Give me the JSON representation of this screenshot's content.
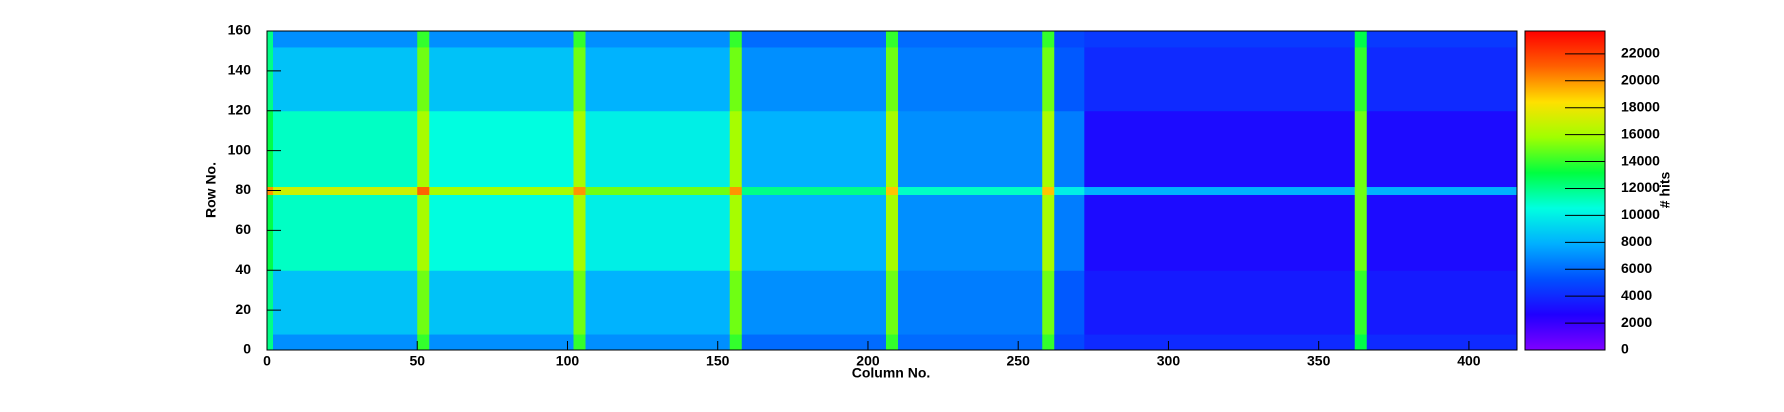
{
  "chart_data": {
    "type": "heatmap",
    "x_label": "Column No.",
    "y_label": "Row No.",
    "z_label": "# hits",
    "x_edges": [
      0,
      2,
      50,
      54,
      102,
      106,
      154,
      158,
      206,
      210,
      258,
      262,
      272,
      362,
      366,
      416
    ],
    "y_edges": [
      0,
      8,
      40,
      78,
      82,
      120,
      152,
      160
    ],
    "z": [
      [
        12000,
        7000,
        14000,
        7000,
        14000,
        7000,
        14000,
        6000,
        14000,
        6000,
        14000,
        5000,
        4000,
        13000,
        4000
      ],
      [
        12000,
        8500,
        15000,
        8500,
        15000,
        8000,
        15000,
        7000,
        15000,
        6500,
        15000,
        5500,
        3500,
        14000,
        3500
      ],
      [
        13000,
        11000,
        16000,
        10500,
        16000,
        10000,
        16000,
        8000,
        16000,
        7000,
        16000,
        6500,
        3000,
        15000,
        3000
      ],
      [
        20000,
        17000,
        21000,
        16000,
        20000,
        15000,
        20000,
        12000,
        19000,
        11000,
        19000,
        10000,
        8000,
        15000,
        8000
      ],
      [
        13000,
        11000,
        16000,
        10500,
        16000,
        10000,
        16000,
        8000,
        16000,
        7000,
        16000,
        6500,
        3000,
        15000,
        3000
      ],
      [
        12000,
        8500,
        15000,
        8500,
        15000,
        8000,
        15000,
        7000,
        15000,
        6500,
        15000,
        5500,
        4000,
        14000,
        4000
      ],
      [
        12000,
        7000,
        14000,
        7000,
        14000,
        7000,
        14000,
        6000,
        14000,
        6000,
        14000,
        5000,
        4500,
        13000,
        4500
      ]
    ],
    "xlim": [
      0,
      416
    ],
    "ylim": [
      0,
      160
    ],
    "zlim": [
      0,
      23700
    ],
    "xticks": [
      0,
      50,
      100,
      150,
      200,
      250,
      300,
      350,
      400
    ],
    "yticks": [
      0,
      20,
      40,
      60,
      80,
      100,
      120,
      140,
      160
    ],
    "zticks": [
      0,
      2000,
      4000,
      6000,
      8000,
      10000,
      12000,
      14000,
      16000,
      18000,
      20000,
      22000
    ],
    "palette": [
      "#7f00ff",
      "#2000ff",
      "#0050ff",
      "#00b0ff",
      "#00ffe0",
      "#00ff40",
      "#a0ff00",
      "#ffe000",
      "#ff6000",
      "#ff0000"
    ]
  }
}
